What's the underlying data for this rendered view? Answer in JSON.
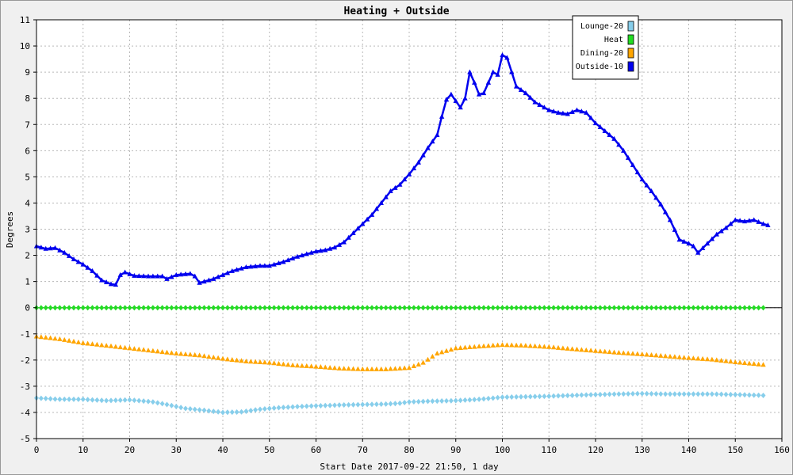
{
  "chart_data": {
    "type": "line",
    "title": "Heating + Outside",
    "xlabel": "Start Date 2017-09-22 21:50, 1 day",
    "ylabel": "Degrees",
    "xlim": [
      0,
      160
    ],
    "ylim": [
      -5,
      11
    ],
    "xticks": [
      0,
      10,
      20,
      30,
      40,
      50,
      60,
      70,
      80,
      90,
      100,
      110,
      120,
      130,
      140,
      150,
      160
    ],
    "yticks": [
      -5,
      -4,
      -3,
      -2,
      -1,
      0,
      1,
      2,
      3,
      4,
      5,
      6,
      7,
      8,
      9,
      10,
      11
    ],
    "grid": true,
    "legend_position": "top-right",
    "series": [
      {
        "name": "Lounge-20",
        "color": "#87ceeb",
        "marker": "diamond",
        "line": false,
        "points": [
          [
            0,
            -3.45
          ],
          [
            5,
            -3.5
          ],
          [
            10,
            -3.5
          ],
          [
            15,
            -3.55
          ],
          [
            20,
            -3.52
          ],
          [
            25,
            -3.6
          ],
          [
            28,
            -3.7
          ],
          [
            32,
            -3.85
          ],
          [
            36,
            -3.92
          ],
          [
            40,
            -4.0
          ],
          [
            44,
            -3.98
          ],
          [
            48,
            -3.88
          ],
          [
            52,
            -3.82
          ],
          [
            56,
            -3.78
          ],
          [
            60,
            -3.75
          ],
          [
            65,
            -3.72
          ],
          [
            70,
            -3.7
          ],
          [
            75,
            -3.68
          ],
          [
            78,
            -3.65
          ],
          [
            80,
            -3.6
          ],
          [
            85,
            -3.57
          ],
          [
            90,
            -3.55
          ],
          [
            95,
            -3.5
          ],
          [
            100,
            -3.42
          ],
          [
            105,
            -3.4
          ],
          [
            110,
            -3.38
          ],
          [
            115,
            -3.35
          ],
          [
            120,
            -3.32
          ],
          [
            125,
            -3.3
          ],
          [
            130,
            -3.28
          ],
          [
            135,
            -3.3
          ],
          [
            140,
            -3.3
          ],
          [
            145,
            -3.3
          ],
          [
            150,
            -3.32
          ],
          [
            156,
            -3.35
          ]
        ]
      },
      {
        "name": "Heat",
        "color": "#22dd22",
        "marker": "diamond",
        "line": false,
        "points": [
          [
            0,
            0
          ],
          [
            156,
            0
          ]
        ]
      },
      {
        "name": "Dining-20",
        "color": "#ffa500",
        "marker": "triangle",
        "line": false,
        "points": [
          [
            0,
            -1.1
          ],
          [
            5,
            -1.2
          ],
          [
            10,
            -1.35
          ],
          [
            15,
            -1.45
          ],
          [
            20,
            -1.55
          ],
          [
            25,
            -1.65
          ],
          [
            30,
            -1.75
          ],
          [
            35,
            -1.82
          ],
          [
            40,
            -1.95
          ],
          [
            45,
            -2.05
          ],
          [
            50,
            -2.1
          ],
          [
            55,
            -2.2
          ],
          [
            60,
            -2.25
          ],
          [
            65,
            -2.32
          ],
          [
            70,
            -2.35
          ],
          [
            75,
            -2.35
          ],
          [
            80,
            -2.3
          ],
          [
            83,
            -2.1
          ],
          [
            86,
            -1.75
          ],
          [
            90,
            -1.55
          ],
          [
            95,
            -1.48
          ],
          [
            100,
            -1.42
          ],
          [
            105,
            -1.45
          ],
          [
            110,
            -1.5
          ],
          [
            115,
            -1.58
          ],
          [
            120,
            -1.65
          ],
          [
            125,
            -1.72
          ],
          [
            130,
            -1.78
          ],
          [
            135,
            -1.85
          ],
          [
            140,
            -1.92
          ],
          [
            145,
            -1.98
          ],
          [
            150,
            -2.08
          ],
          [
            156,
            -2.18
          ]
        ]
      },
      {
        "name": "Outside-10",
        "color": "#0000ee",
        "marker": "triangle",
        "line": true,
        "points": [
          [
            0,
            2.35
          ],
          [
            2,
            2.25
          ],
          [
            4,
            2.28
          ],
          [
            6,
            2.1
          ],
          [
            8,
            1.85
          ],
          [
            10,
            1.65
          ],
          [
            12,
            1.4
          ],
          [
            14,
            1.05
          ],
          [
            16,
            0.9
          ],
          [
            17,
            0.88
          ],
          [
            18,
            1.25
          ],
          [
            19,
            1.35
          ],
          [
            21,
            1.22
          ],
          [
            24,
            1.2
          ],
          [
            27,
            1.2
          ],
          [
            28,
            1.1
          ],
          [
            30,
            1.25
          ],
          [
            33,
            1.3
          ],
          [
            34,
            1.2
          ],
          [
            35,
            0.95
          ],
          [
            38,
            1.1
          ],
          [
            40,
            1.25
          ],
          [
            42,
            1.4
          ],
          [
            45,
            1.55
          ],
          [
            48,
            1.6
          ],
          [
            50,
            1.6
          ],
          [
            53,
            1.75
          ],
          [
            56,
            1.95
          ],
          [
            58,
            2.05
          ],
          [
            60,
            2.15
          ],
          [
            62,
            2.2
          ],
          [
            64,
            2.3
          ],
          [
            66,
            2.5
          ],
          [
            68,
            2.85
          ],
          [
            70,
            3.2
          ],
          [
            72,
            3.55
          ],
          [
            74,
            4.0
          ],
          [
            76,
            4.45
          ],
          [
            78,
            4.7
          ],
          [
            80,
            5.1
          ],
          [
            82,
            5.55
          ],
          [
            84,
            6.1
          ],
          [
            86,
            6.6
          ],
          [
            87,
            7.3
          ],
          [
            88,
            7.95
          ],
          [
            89,
            8.15
          ],
          [
            90,
            7.9
          ],
          [
            91,
            7.65
          ],
          [
            92,
            8.0
          ],
          [
            93,
            9.0
          ],
          [
            94,
            8.6
          ],
          [
            95,
            8.15
          ],
          [
            96,
            8.2
          ],
          [
            97,
            8.6
          ],
          [
            98,
            9.0
          ],
          [
            99,
            8.9
          ],
          [
            100,
            9.65
          ],
          [
            101,
            9.55
          ],
          [
            102,
            9.0
          ],
          [
            103,
            8.45
          ],
          [
            105,
            8.2
          ],
          [
            107,
            7.85
          ],
          [
            110,
            7.55
          ],
          [
            112,
            7.45
          ],
          [
            114,
            7.4
          ],
          [
            116,
            7.55
          ],
          [
            118,
            7.45
          ],
          [
            120,
            7.05
          ],
          [
            122,
            6.75
          ],
          [
            124,
            6.45
          ],
          [
            126,
            6.0
          ],
          [
            128,
            5.45
          ],
          [
            130,
            4.9
          ],
          [
            132,
            4.45
          ],
          [
            134,
            3.95
          ],
          [
            136,
            3.35
          ],
          [
            138,
            2.6
          ],
          [
            140,
            2.45
          ],
          [
            141,
            2.35
          ],
          [
            142,
            2.1
          ],
          [
            144,
            2.45
          ],
          [
            146,
            2.8
          ],
          [
            148,
            3.05
          ],
          [
            150,
            3.35
          ],
          [
            152,
            3.3
          ],
          [
            154,
            3.35
          ],
          [
            156,
            3.2
          ],
          [
            157,
            3.15
          ]
        ]
      }
    ]
  }
}
